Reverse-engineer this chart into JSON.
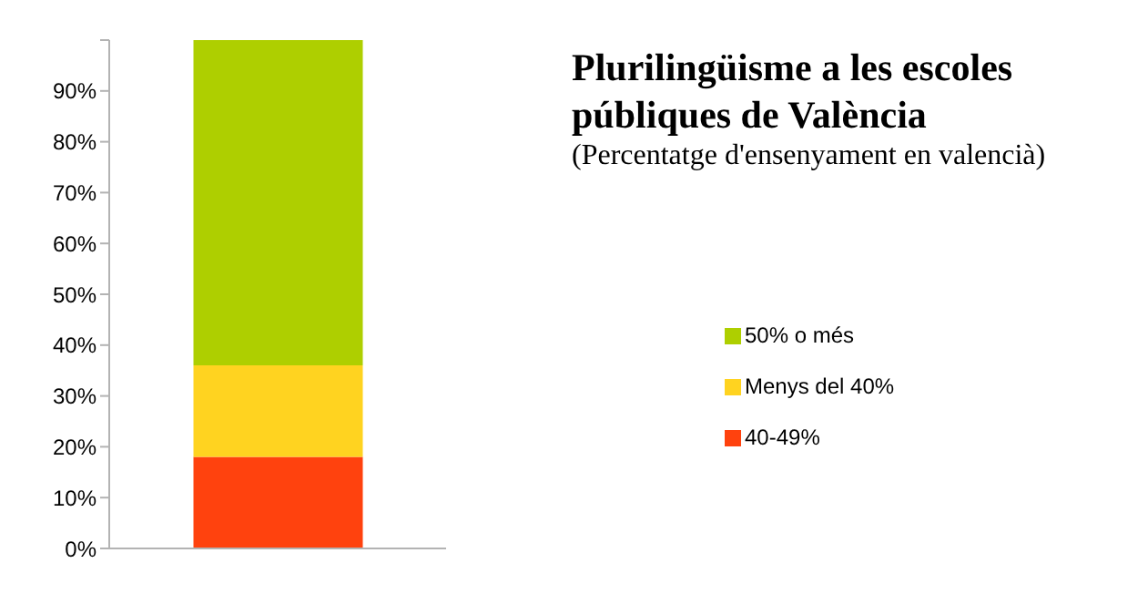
{
  "chart_data": {
    "type": "bar",
    "title": "Plurilingüisme a les escoles públiques de València",
    "subtitle": "(Percentatge d'ensenyament en valencià)",
    "categories": [
      null
    ],
    "stacked": true,
    "series": [
      {
        "name": "40-49%",
        "color": "#ff420e",
        "values": [
          18
        ]
      },
      {
        "name": "Menys del 40%",
        "color": "#ffd320",
        "values": [
          18
        ]
      },
      {
        "name": "50% o més",
        "color": "#aecf00",
        "values": [
          64
        ]
      }
    ],
    "ylim": [
      0,
      100
    ],
    "yticks": [
      {
        "value": 0,
        "label": "0%"
      },
      {
        "value": 10,
        "label": "10%"
      },
      {
        "value": 20,
        "label": "20%"
      },
      {
        "value": 30,
        "label": "30%"
      },
      {
        "value": 40,
        "label": "40%"
      },
      {
        "value": 50,
        "label": "50%"
      },
      {
        "value": 60,
        "label": "60%"
      },
      {
        "value": 70,
        "label": "70%"
      },
      {
        "value": 80,
        "label": "80%"
      },
      {
        "value": 90,
        "label": "90%"
      },
      {
        "value": 100,
        "label": null
      }
    ],
    "grid": false,
    "legend": "right"
  }
}
